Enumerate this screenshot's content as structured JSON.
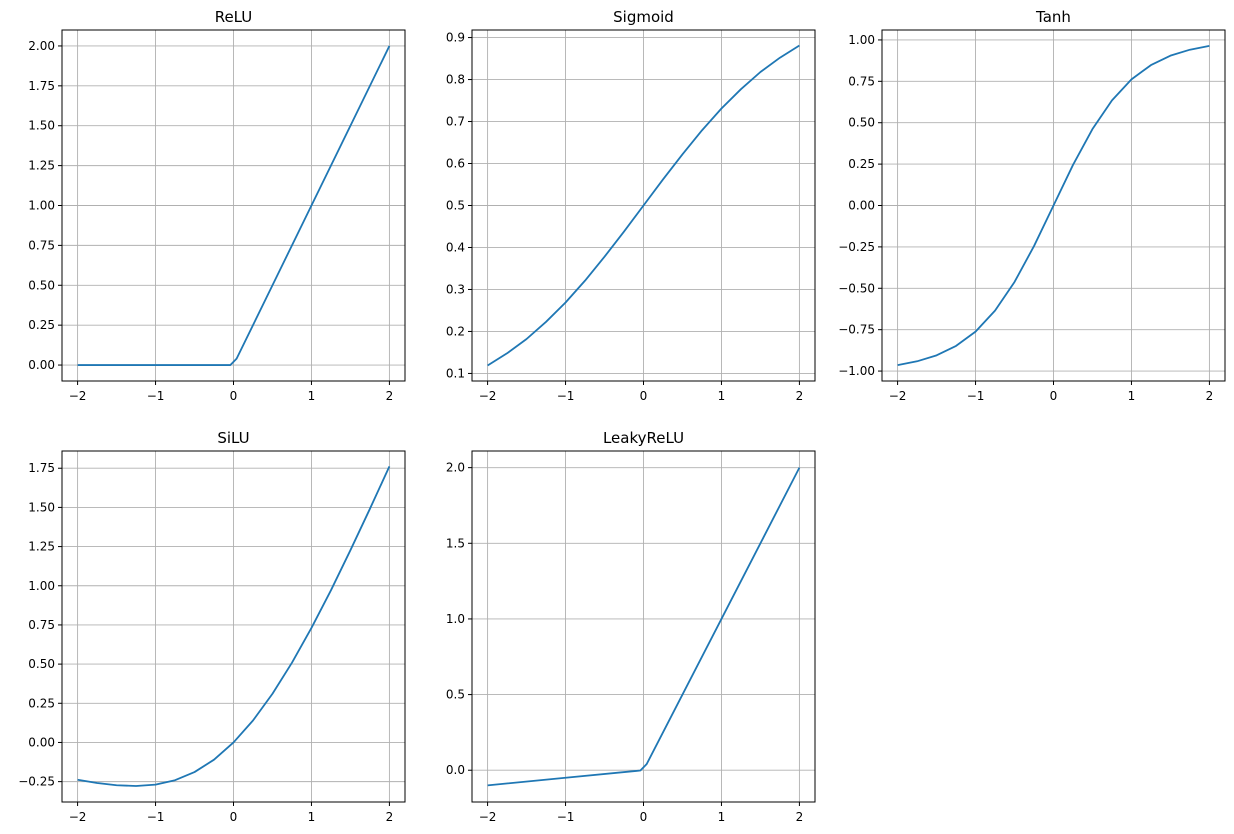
{
  "chart_data": [
    {
      "type": "line",
      "title": "ReLU",
      "xlabel": "",
      "ylabel": "",
      "grid": true,
      "x_range": [
        -2,
        2
      ],
      "xlim": [
        -2.2,
        2.2
      ],
      "ylim": [
        -0.1,
        2.1
      ],
      "xticks": [
        -2,
        -1,
        0,
        1,
        2
      ],
      "xtick_labels": [
        "−2",
        "−1",
        "0",
        "1",
        "2"
      ],
      "yticks": [
        0,
        0.25,
        0.5,
        0.75,
        1.0,
        1.25,
        1.5,
        1.75,
        2.0
      ],
      "ytick_labels": [
        "0.00",
        "0.25",
        "0.50",
        "0.75",
        "1.00",
        "1.25",
        "1.50",
        "1.75",
        "2.00"
      ],
      "series": [
        {
          "color": "#1f77b4",
          "x": [
            -2,
            -1.5,
            -1,
            -0.5,
            -0.04,
            0.04,
            0.5,
            1,
            1.5,
            2
          ],
          "y": [
            0,
            0,
            0,
            0,
            0,
            0.04,
            0.5,
            1,
            1.5,
            2
          ]
        }
      ]
    },
    {
      "type": "line",
      "title": "Sigmoid",
      "xlabel": "",
      "ylabel": "",
      "grid": true,
      "x_range": [
        -2,
        2
      ],
      "xlim": [
        -2.2,
        2.2
      ],
      "ylim": [
        0.082,
        0.918
      ],
      "xticks": [
        -2,
        -1,
        0,
        1,
        2
      ],
      "xtick_labels": [
        "−2",
        "−1",
        "0",
        "1",
        "2"
      ],
      "yticks": [
        0.1,
        0.2,
        0.3,
        0.4,
        0.5,
        0.6,
        0.7,
        0.8,
        0.9
      ],
      "ytick_labels": [
        "0.1",
        "0.2",
        "0.3",
        "0.4",
        "0.5",
        "0.6",
        "0.7",
        "0.8",
        "0.9"
      ],
      "series": [
        {
          "color": "#1f77b4",
          "x": [
            -2,
            -1.75,
            -1.5,
            -1.25,
            -1,
            -0.75,
            -0.5,
            -0.25,
            0,
            0.25,
            0.5,
            0.75,
            1,
            1.25,
            1.5,
            1.75,
            2
          ],
          "y": [
            0.119,
            0.148,
            0.182,
            0.223,
            0.269,
            0.321,
            0.378,
            0.438,
            0.5,
            0.562,
            0.622,
            0.679,
            0.731,
            0.777,
            0.818,
            0.852,
            0.881
          ]
        }
      ]
    },
    {
      "type": "line",
      "title": "Tanh",
      "xlabel": "",
      "ylabel": "",
      "grid": true,
      "x_range": [
        -2,
        2
      ],
      "xlim": [
        -2.2,
        2.2
      ],
      "ylim": [
        -1.06,
        1.06
      ],
      "xticks": [
        -2,
        -1,
        0,
        1,
        2
      ],
      "xtick_labels": [
        "−2",
        "−1",
        "0",
        "1",
        "2"
      ],
      "yticks": [
        -1.0,
        -0.75,
        -0.5,
        -0.25,
        0,
        0.25,
        0.5,
        0.75,
        1.0
      ],
      "ytick_labels": [
        "−1.00",
        "−0.75",
        "−0.50",
        "−0.25",
        "0.00",
        "0.25",
        "0.50",
        "0.75",
        "1.00"
      ],
      "series": [
        {
          "color": "#1f77b4",
          "x": [
            -2,
            -1.75,
            -1.5,
            -1.25,
            -1,
            -0.75,
            -0.5,
            -0.25,
            0,
            0.25,
            0.5,
            0.75,
            1,
            1.25,
            1.5,
            1.75,
            2
          ],
          "y": [
            -0.964,
            -0.941,
            -0.905,
            -0.848,
            -0.762,
            -0.635,
            -0.462,
            -0.245,
            0,
            0.245,
            0.462,
            0.635,
            0.762,
            0.848,
            0.905,
            0.941,
            0.964
          ]
        }
      ]
    },
    {
      "type": "line",
      "title": "SiLU",
      "xlabel": "",
      "ylabel": "",
      "grid": true,
      "x_range": [
        -2,
        2
      ],
      "xlim": [
        -2.2,
        2.2
      ],
      "ylim": [
        -0.38,
        1.86
      ],
      "xticks": [
        -2,
        -1,
        0,
        1,
        2
      ],
      "xtick_labels": [
        "−2",
        "−1",
        "0",
        "1",
        "2"
      ],
      "yticks": [
        -0.25,
        0,
        0.25,
        0.5,
        0.75,
        1.0,
        1.25,
        1.5,
        1.75
      ],
      "ytick_labels": [
        "−0.25",
        "0.00",
        "0.25",
        "0.50",
        "0.75",
        "1.00",
        "1.25",
        "1.50",
        "1.75"
      ],
      "series": [
        {
          "color": "#1f77b4",
          "x": [
            -2,
            -1.75,
            -1.5,
            -1.25,
            -1,
            -0.75,
            -0.5,
            -0.25,
            0,
            0.25,
            0.5,
            0.75,
            1,
            1.25,
            1.5,
            1.75,
            2
          ],
          "y": [
            -0.238,
            -0.259,
            -0.273,
            -0.278,
            -0.269,
            -0.241,
            -0.189,
            -0.11,
            0,
            0.14,
            0.311,
            0.509,
            0.731,
            0.971,
            1.227,
            1.491,
            1.762
          ]
        }
      ]
    },
    {
      "type": "line",
      "title": "LeakyReLU",
      "xlabel": "",
      "ylabel": "",
      "grid": true,
      "x_range": [
        -2,
        2
      ],
      "xlim": [
        -2.2,
        2.2
      ],
      "ylim": [
        -0.21,
        2.11
      ],
      "xticks": [
        -2,
        -1,
        0,
        1,
        2
      ],
      "xtick_labels": [
        "−2",
        "−1",
        "0",
        "1",
        "2"
      ],
      "yticks": [
        0,
        0.5,
        1.0,
        1.5,
        2.0
      ],
      "ytick_labels": [
        "0.0",
        "0.5",
        "1.0",
        "1.5",
        "2.0"
      ],
      "series": [
        {
          "color": "#1f77b4",
          "x": [
            -2,
            -1,
            -0.04,
            0.04,
            0.5,
            1,
            1.5,
            2
          ],
          "y": [
            -0.1,
            -0.05,
            -0.002,
            0.04,
            0.5,
            1,
            1.5,
            2
          ]
        }
      ]
    }
  ]
}
